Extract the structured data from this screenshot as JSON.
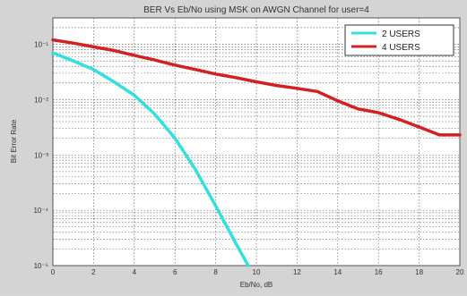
{
  "chart_data": {
    "type": "line",
    "title": "BER Vs Eb/No using MSK on AWGN  Channel for user=4",
    "xlabel": "Eb/No, dB",
    "ylabel": "Bit Error Rate",
    "x_scale": "linear",
    "y_scale": "log",
    "xlim": [
      0,
      20
    ],
    "ylim": [
      1e-05,
      0.3
    ],
    "x_ticks": [
      0,
      2,
      4,
      6,
      8,
      10,
      12,
      14,
      16,
      18,
      20
    ],
    "x_tick_labels": [
      "0",
      "2",
      "4",
      "6",
      "8",
      "10",
      "12",
      "14",
      "16",
      "18",
      "20"
    ],
    "y_ticks": [
      1e-05,
      0.0001,
      0.001,
      0.01,
      0.1
    ],
    "y_tick_labels": [
      "10⁻⁵",
      "10⁻⁴",
      "10⁻³",
      "10⁻²",
      "10⁻¹"
    ],
    "grid": true,
    "legend_position": "top-right",
    "series": [
      {
        "name": "2 USERS",
        "color": "#33e0e0",
        "x": [
          0,
          1,
          2,
          3,
          4,
          5,
          6,
          7,
          8,
          9,
          9.6
        ],
        "y": [
          0.07,
          0.05,
          0.035,
          0.021,
          0.012,
          0.0055,
          0.002,
          0.00055,
          0.00012,
          2.5e-05,
          1e-05
        ]
      },
      {
        "name": "4 USERS",
        "color": "#d42020",
        "x": [
          0,
          1,
          2,
          3,
          4,
          5,
          6,
          7,
          8,
          9,
          10,
          11,
          12,
          13,
          14,
          15,
          16,
          17,
          18,
          19,
          20
        ],
        "y": [
          0.12,
          0.105,
          0.09,
          0.077,
          0.063,
          0.052,
          0.042,
          0.035,
          0.029,
          0.025,
          0.021,
          0.018,
          0.016,
          0.014,
          0.0095,
          0.0068,
          0.0058,
          0.0044,
          0.0032,
          0.0023,
          0.0023
        ]
      }
    ]
  }
}
